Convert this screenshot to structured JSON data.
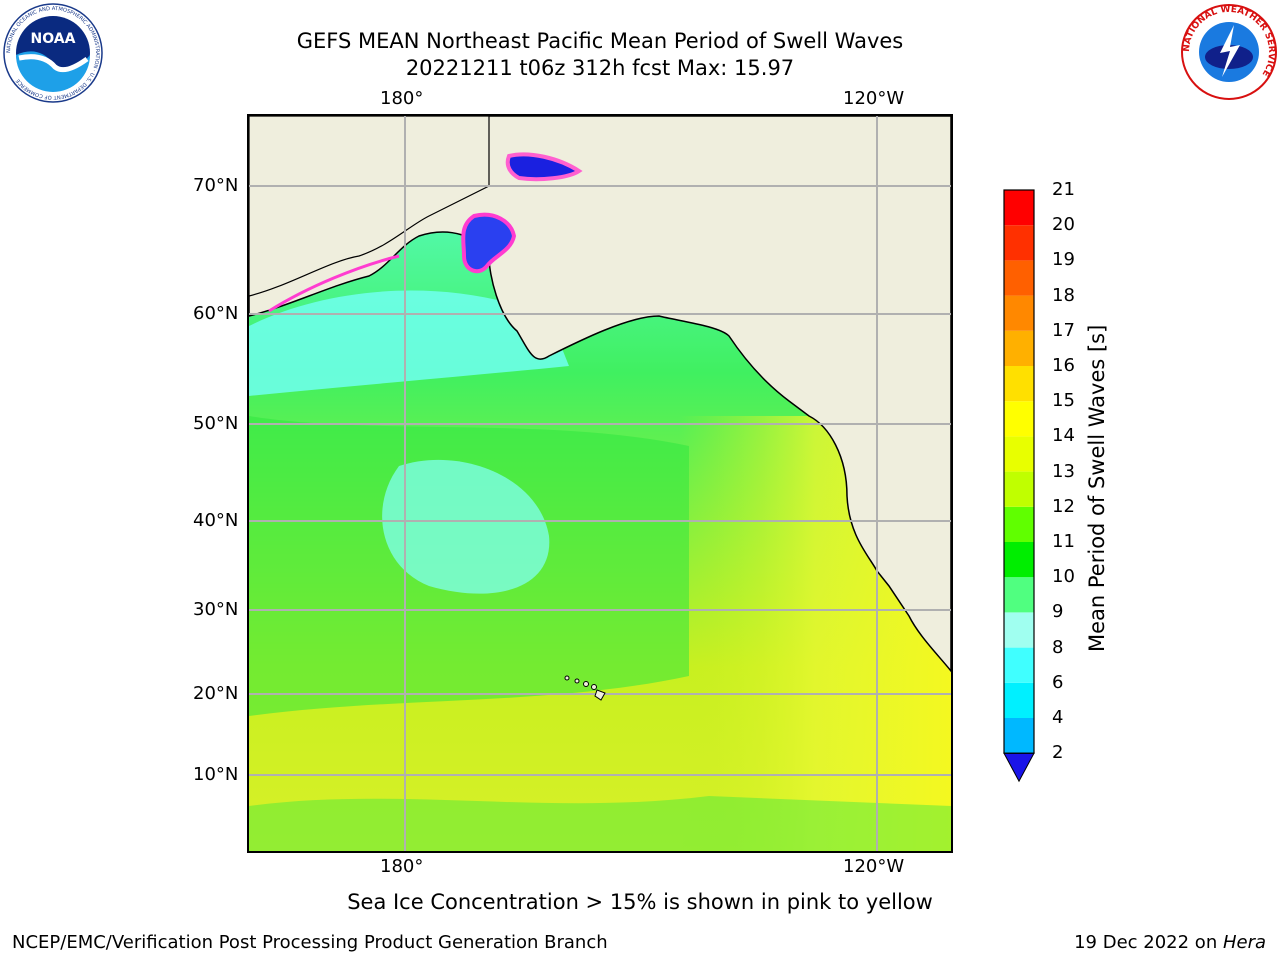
{
  "header": {
    "title_line1": "GEFS MEAN Northeast Pacific Mean Period of Swell Waves",
    "title_line2": "20221211 t06z 312h fcst   Max: 15.97"
  },
  "map": {
    "projection": "cylindrical lat/lon",
    "lon_labels": [
      "180°",
      "120°W"
    ],
    "lat_labels": [
      "70°N",
      "60°N",
      "50°N",
      "40°N",
      "30°N",
      "20°N",
      "10°N"
    ],
    "colors": {
      "land": "#efeedd",
      "coast": "#000000",
      "grid": "#b0b0b0",
      "sea_ice": "#ff3cd0"
    }
  },
  "colorbar": {
    "label": "Mean Period of Swell Waves [s]",
    "ticks": [
      "2",
      "4",
      "6",
      "8",
      "9",
      "10",
      "11",
      "12",
      "13",
      "14",
      "15",
      "16",
      "17",
      "18",
      "19",
      "20",
      "21"
    ],
    "colors": [
      "#0050ff",
      "#00b8ff",
      "#00f0ff",
      "#40ffff",
      "#a0fff0",
      "#50ff80",
      "#00ee00",
      "#60ff00",
      "#c0ff00",
      "#e8ff00",
      "#ffff00",
      "#ffe000",
      "#ffb000",
      "#ff8800",
      "#ff6000",
      "#ff3000",
      "#ff0000"
    ],
    "extend_min_color": "#1a14e8"
  },
  "note": "Sea Ice Concentration > 15% is shown in pink to yellow",
  "footer": {
    "left": "NCEP/EMC/Verification Post Processing Product Generation Branch",
    "right_date": "19 Dec 2022 on ",
    "right_machine": "Hera"
  },
  "logos": {
    "noaa_text": "NOAA",
    "noaa_ring": "NATIONAL OCEANIC AND ATMOSPHERIC ADMINISTRATION · U.S. DEPARTMENT OF COMMERCE",
    "nws_ring": "NATIONAL WEATHER SERVICE"
  }
}
